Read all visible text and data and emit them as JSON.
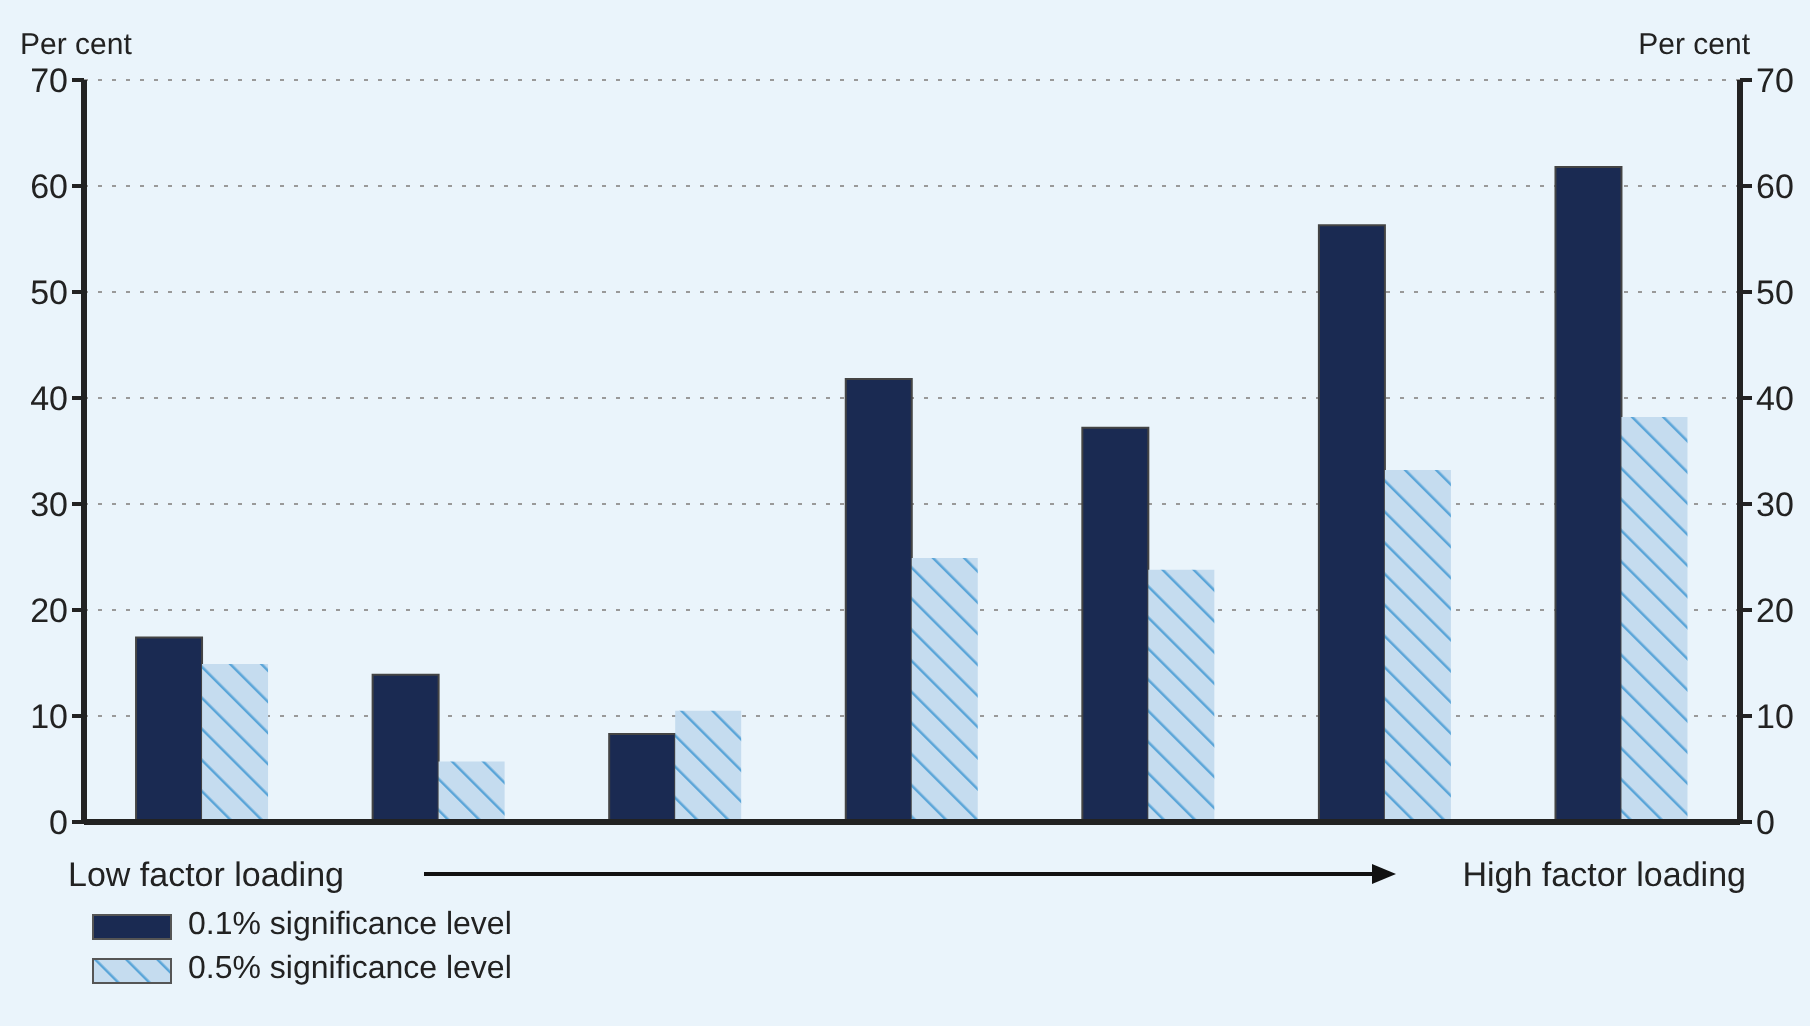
{
  "chart_data": {
    "type": "bar",
    "categories": [
      null,
      null,
      null,
      null,
      null,
      null,
      null
    ],
    "series": [
      {
        "name": "0.1% significance level",
        "color": "#1a2a52",
        "values": [
          17.4,
          13.9,
          8.3,
          41.8,
          37.2,
          56.3,
          61.8
        ]
      },
      {
        "name": "0.5% significance level",
        "color": "#c5dcef",
        "values": [
          14.9,
          5.7,
          10.5,
          24.9,
          23.8,
          33.2,
          38.2
        ]
      }
    ],
    "ylabel": "Per cent",
    "y2label": "Per cent",
    "ylim": [
      0,
      70
    ],
    "yticks": [
      0,
      10,
      20,
      30,
      40,
      50,
      60,
      70
    ],
    "y2lim": [
      0,
      70
    ],
    "y2ticks": [
      0,
      10,
      20,
      30,
      40,
      50,
      60,
      70
    ],
    "annotations": [
      "Low factor loading",
      "High factor loading"
    ],
    "grid": "y",
    "legend": "bottom left"
  }
}
